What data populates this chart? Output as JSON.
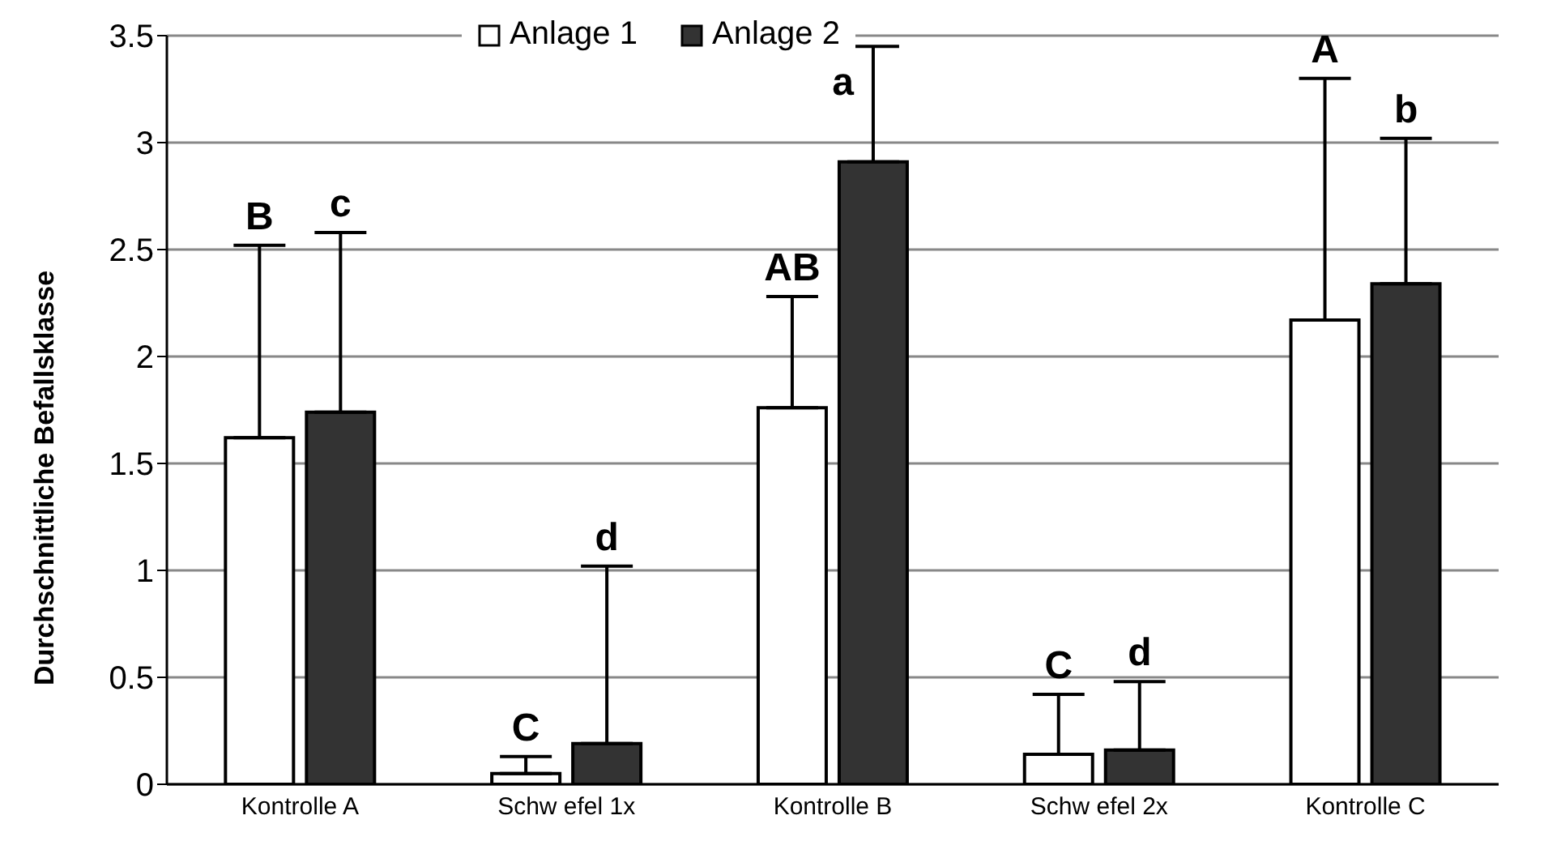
{
  "chart_data": {
    "type": "bar",
    "ylabel": "Durchschnittliche Befallsklasse",
    "categories": [
      "Kontrolle A",
      "Schw efel 1x",
      "Kontrolle B",
      "Schw efel 2x",
      "Kontrolle C"
    ],
    "series": [
      {
        "name": "Anlage 1",
        "color": "#ffffff",
        "values": [
          1.62,
          0.05,
          1.76,
          0.14,
          2.17
        ],
        "errors": [
          [
            1.62,
            2.52
          ],
          [
            0.05,
            0.13
          ],
          [
            1.76,
            2.28
          ],
          [
            0.14,
            0.42
          ],
          [
            2.17,
            3.3
          ]
        ]
      },
      {
        "name": "Anlage 2",
        "color": "#333333",
        "values": [
          1.74,
          0.19,
          2.91,
          0.16,
          2.34
        ],
        "errors": [
          [
            1.74,
            2.58
          ],
          [
            0.19,
            1.02
          ],
          [
            2.91,
            3.45
          ],
          [
            0.16,
            0.48
          ],
          [
            2.34,
            3.02
          ]
        ]
      }
    ],
    "annotations": [
      "B",
      "c",
      "C",
      "d",
      "AB",
      "a",
      "C",
      "d",
      "A",
      "b"
    ],
    "ylim": [
      0,
      3.5
    ],
    "yticks": [
      0,
      0.5,
      1,
      1.5,
      2,
      2.5,
      3,
      3.5
    ],
    "grid": "y",
    "legend": "top"
  }
}
